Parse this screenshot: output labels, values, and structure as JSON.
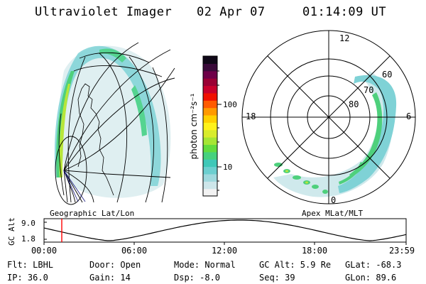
{
  "header": {
    "instrument": "Ultraviolet Imager",
    "date": "02 Apr 07",
    "time": "01:14:09 UT"
  },
  "colorbar": {
    "label": "photon cm⁻²s⁻¹",
    "ticks": [
      "100",
      "10"
    ],
    "colors": [
      "#f2f2f2",
      "#cde6ea",
      "#9fd9de",
      "#6ccfd0",
      "#3fc8b8",
      "#46d17e",
      "#62dc3e",
      "#a5e634",
      "#d8ec2c",
      "#fff21a",
      "#ffd000",
      "#ff9900",
      "#ff5a00",
      "#f01000",
      "#c8002c",
      "#9a0034",
      "#6e0048",
      "#3a0a3a",
      "#100818"
    ]
  },
  "left_panel": {
    "caption": "Geographic Lat/Lon"
  },
  "right_panel": {
    "caption": "Apex MLat/MLT",
    "mlt_labels": {
      "top": "12",
      "left": "18",
      "right": "6",
      "bottom": "0"
    },
    "lat_labels": [
      "60",
      "70",
      "80"
    ]
  },
  "altitude_plot": {
    "ylabel": "GC Alt",
    "yticks": [
      "9.0",
      "1.8"
    ],
    "xticks": [
      "00:00",
      "06:00",
      "12:00",
      "18:00",
      "23:59"
    ],
    "marker_color": "#ff0000"
  },
  "info": {
    "filter": "Flt: LBHL",
    "door": "Door: Open",
    "mode": "Mode: Normal",
    "gc_alt": "GC Alt: 5.9 Re",
    "glat": "GLat: -68.3",
    "ip": "IP: 36.0",
    "gain": "Gain: 14",
    "dsp": "Dsp:    -8.0",
    "seq": "Seq: 39",
    "glon": "GLon:  89.6"
  }
}
